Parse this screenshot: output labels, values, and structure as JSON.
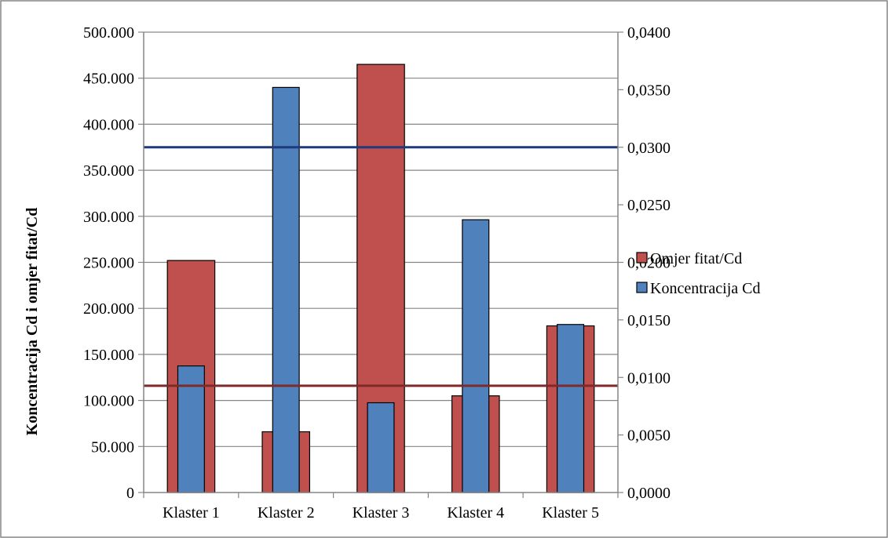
{
  "chart_data": {
    "type": "bar",
    "title": "",
    "xlabel": "",
    "ylabel": "Koncentracija Cd i omjer fitat/Cd",
    "categories": [
      "Klaster 1",
      "Klaster 2",
      "Klaster 3",
      "Klaster 4",
      "Klaster 5"
    ],
    "y_left": {
      "range": [
        0,
        500
      ],
      "ticks": [
        0,
        50,
        100,
        150,
        200,
        250,
        300,
        350,
        400,
        450,
        500
      ],
      "tick_labels": [
        "0",
        "50.000",
        "100.000",
        "150.000",
        "200.000",
        "250.000",
        "300.000",
        "350.000",
        "400.000",
        "450.000",
        "500.000"
      ]
    },
    "y_right": {
      "range": [
        0,
        0.04
      ],
      "ticks": [
        0,
        0.005,
        0.01,
        0.015,
        0.02,
        0.025,
        0.03,
        0.035,
        0.04
      ],
      "tick_labels": [
        "0,0000",
        "0,0050",
        "0,0100",
        "0,0150",
        "0,0200",
        "0,0250",
        "0,0300",
        "0,0350",
        "0,0400"
      ]
    },
    "series": [
      {
        "name": "Omjer fitat/Cd",
        "axis": "left",
        "color": "#c0504d",
        "values": [
          252,
          66,
          465,
          105,
          181
        ]
      },
      {
        "name": "Koncentracija Cd",
        "axis": "right",
        "color": "#4f81bd",
        "values": [
          0.011,
          0.0352,
          0.0078,
          0.0237,
          0.0146
        ]
      }
    ],
    "reference_lines": [
      {
        "axis": "right",
        "value": 0.03,
        "color": "#1f3a7a"
      },
      {
        "axis": "left",
        "value": 116,
        "color": "#7f2a2a"
      }
    ],
    "grid": true,
    "legend_position": "right"
  }
}
